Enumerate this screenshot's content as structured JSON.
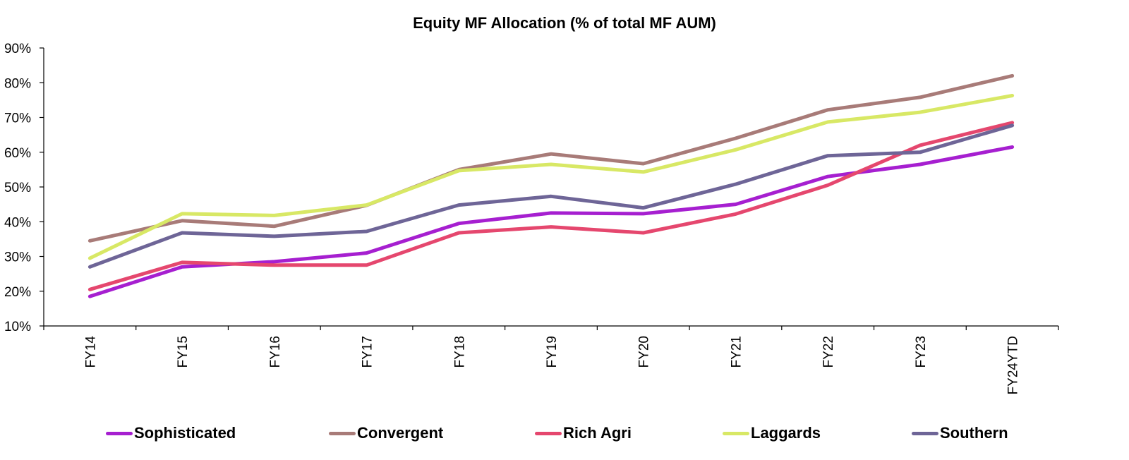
{
  "chart_data": {
    "type": "line",
    "title": "Equity MF Allocation (% of total MF AUM)",
    "xlabel": "",
    "ylabel": "",
    "categories": [
      "FY14",
      "FY15",
      "FY16",
      "FY17",
      "FY18",
      "FY19",
      "FY20",
      "FY21",
      "FY22",
      "FY23",
      "FY24YTD"
    ],
    "y_ticks": [
      "10%",
      "20%",
      "30%",
      "40%",
      "50%",
      "60%",
      "70%",
      "80%",
      "90%"
    ],
    "ylim": [
      10,
      90
    ],
    "grid": false,
    "legend_position": "bottom",
    "series": [
      {
        "name": "Sophisticated",
        "color": "#a61fd0",
        "values": [
          18.5,
          27.0,
          28.5,
          31.0,
          39.5,
          42.5,
          42.3,
          45.0,
          53.0,
          56.5,
          61.5
        ]
      },
      {
        "name": "Convergent",
        "color": "#a87b78",
        "values": [
          34.5,
          40.3,
          38.7,
          44.7,
          55.0,
          59.5,
          56.7,
          64.0,
          72.2,
          75.8,
          82.0
        ]
      },
      {
        "name": "Rich Agri",
        "color": "#e5476e",
        "values": [
          20.5,
          28.3,
          27.5,
          27.5,
          36.8,
          38.5,
          36.8,
          42.2,
          50.5,
          62.0,
          68.5
        ]
      },
      {
        "name": "Laggards",
        "color": "#d8e865",
        "values": [
          29.5,
          42.3,
          41.8,
          44.8,
          54.7,
          56.5,
          54.3,
          60.7,
          68.7,
          71.5,
          76.3
        ]
      },
      {
        "name": "Southern",
        "color": "#6e6597",
        "values": [
          27.0,
          36.8,
          35.8,
          37.2,
          44.8,
          47.3,
          44.0,
          50.8,
          59.0,
          60.0,
          67.7
        ]
      }
    ]
  }
}
